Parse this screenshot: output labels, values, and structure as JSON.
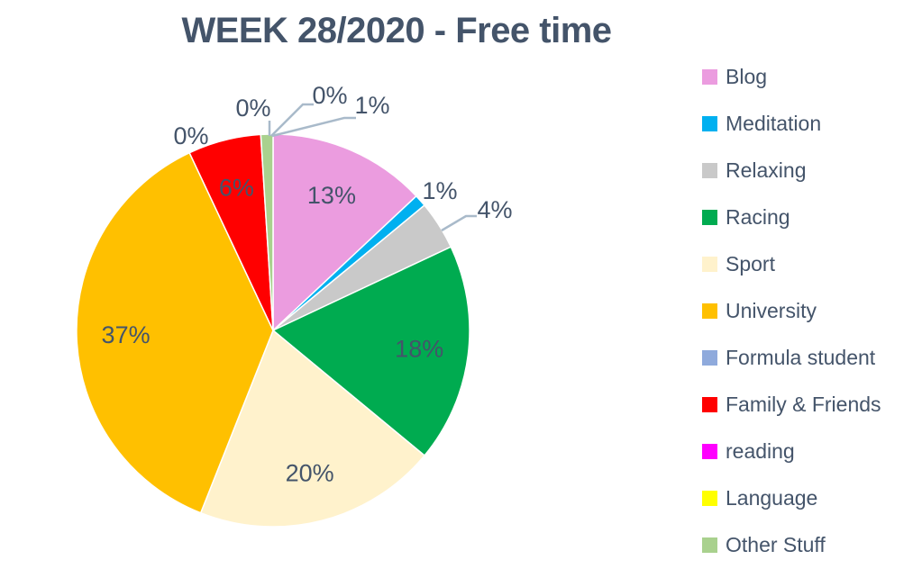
{
  "colors": {
    "text": "#44546A",
    "leader_line": "#A9BACA",
    "background": "#FFFFFF",
    "slice_border": "#FFFFFF"
  },
  "chart_data": {
    "type": "pie",
    "title": "WEEK 28/2020 - Free time",
    "legend_position": "right",
    "start_angle_deg": 0,
    "direction": "clockwise",
    "unit": "percent",
    "series": [
      {
        "name": "Blog",
        "value": 13,
        "label": "13%",
        "color": "#EB9CDF",
        "label_placement": "inside"
      },
      {
        "name": "Meditation",
        "value": 1,
        "label": "1%",
        "color": "#00B0F0",
        "label_placement": "outside"
      },
      {
        "name": "Relaxing",
        "value": 4,
        "label": "4%",
        "color": "#C9C9C9",
        "label_placement": "outside",
        "leader": true
      },
      {
        "name": "Racing",
        "value": 18,
        "label": "18%",
        "color": "#00AB50",
        "label_placement": "inside"
      },
      {
        "name": "Sport",
        "value": 20,
        "label": "20%",
        "color": "#FFF2CC",
        "label_placement": "inside"
      },
      {
        "name": "University",
        "value": 37,
        "label": "37%",
        "color": "#FFC000",
        "label_placement": "inside"
      },
      {
        "name": "Formula student",
        "value": 0,
        "label": "0%",
        "color": "#8FAADC",
        "label_placement": "outside"
      },
      {
        "name": "Family & Friends",
        "value": 6,
        "label": "6%",
        "color": "#FF0000",
        "label_placement": "inside"
      },
      {
        "name": "reading",
        "value": 0,
        "label": "0%",
        "color": "#FF00FF",
        "label_placement": "outside",
        "leader": true
      },
      {
        "name": "Language",
        "value": 0,
        "label": "0%",
        "color": "#FFFF00",
        "label_placement": "outside",
        "leader": true
      },
      {
        "name": "Other Stuff",
        "value": 1,
        "label": "1%",
        "color": "#A9D18E",
        "label_placement": "outside",
        "leader": true
      }
    ]
  }
}
